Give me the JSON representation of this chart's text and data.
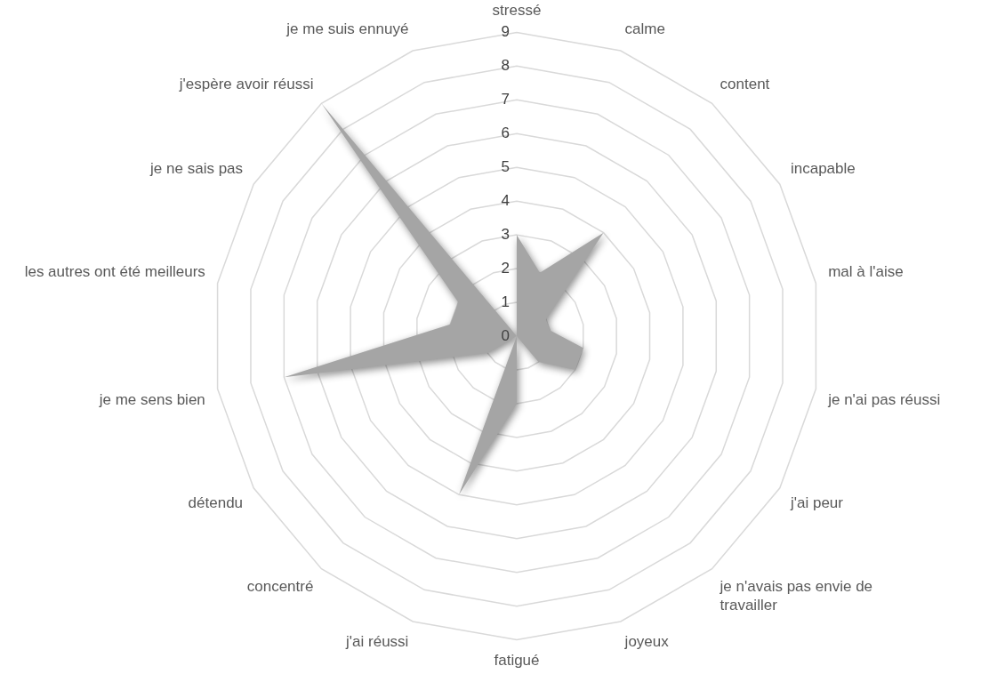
{
  "chart_data": {
    "type": "radar",
    "categories": [
      "stressé",
      "calme",
      "content",
      "incapable",
      "mal à l'aise",
      "je n'ai pas réussi",
      "j'ai peur",
      "je n'avais pas envie de travailler",
      "joyeux",
      "fatigué",
      "j'ai réussi",
      "concentré",
      "détendu",
      "je me sens bien",
      "les autres ont été meilleurs",
      "je ne sais pas",
      "j'espère avoir réussi",
      "je me suis ennuyé"
    ],
    "series": [
      {
        "color": "#a5a5a5",
        "values": [
          3,
          2,
          4,
          1,
          1,
          2,
          2,
          1,
          0,
          2,
          5,
          0,
          1,
          7,
          2,
          2,
          9,
          0
        ]
      }
    ],
    "ylim": [
      0,
      9
    ],
    "yticks": [
      0,
      1,
      2,
      3,
      4,
      5,
      6,
      7,
      8,
      9
    ],
    "grid": true,
    "legend": false
  }
}
